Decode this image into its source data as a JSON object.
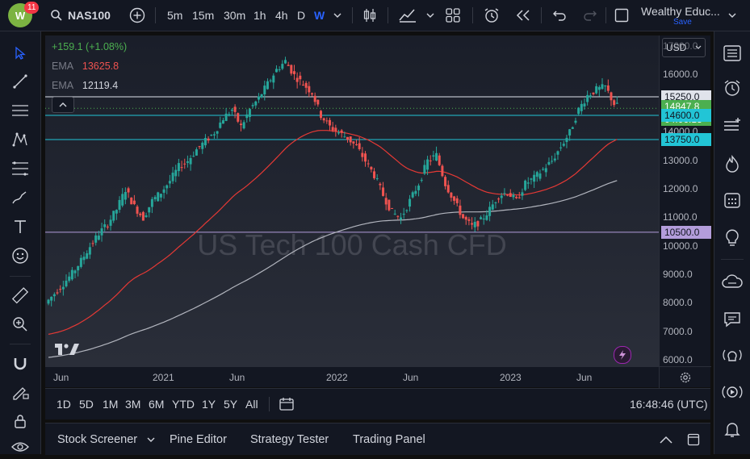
{
  "app": {
    "badge_count": "11",
    "symbol": "NAS100",
    "account_name": "Wealthy Educ...",
    "save_label": "Save"
  },
  "toolbar": {
    "intervals": [
      "5m",
      "15m",
      "30m",
      "1h",
      "4h",
      "D",
      "W"
    ],
    "active_interval": "W"
  },
  "legend": {
    "change": "+159.1 (+1.08%)",
    "ema1_label": "EMA",
    "ema1_value": "13625.8",
    "ema2_label": "EMA",
    "ema2_value": "12119.4"
  },
  "currency": "USD",
  "watermark": "US Tech 100 Cash CFD",
  "price_axis": {
    "ticks": [
      "17000.0",
      "16000.0",
      "15000.0",
      "14000.0",
      "13000.0",
      "12000.0",
      "11000.0",
      "10000.0",
      "9000.0",
      "8000.0",
      "7000.0",
      "6000.0"
    ],
    "levels": [
      {
        "label": "15250.0",
        "bg": "#e0e3eb",
        "fg": "#131722"
      },
      {
        "label": "14847.8",
        "bg": "#4caf50",
        "fg": "#ffffff"
      },
      {
        "label": "04:06:13",
        "bg": "#4caf50",
        "fg": "#ffffff"
      },
      {
        "label": "14600.0",
        "bg": "#22c5d6",
        "fg": "#131722"
      },
      {
        "label": "13750.0",
        "bg": "#22c5d6",
        "fg": "#131722"
      },
      {
        "label": "10500.0",
        "bg": "#b39ddb",
        "fg": "#131722"
      }
    ]
  },
  "time_axis": {
    "labels": [
      "Jun",
      "2021",
      "Jun",
      "2022",
      "Jun",
      "2023",
      "Jun"
    ]
  },
  "ranges": [
    "1D",
    "5D",
    "1M",
    "3M",
    "6M",
    "YTD",
    "1Y",
    "5Y",
    "All"
  ],
  "clock": "16:48:46 (UTC)",
  "panels": {
    "stock_screener": "Stock Screener",
    "pine_editor": "Pine Editor",
    "strategy_tester": "Strategy Tester",
    "trading_panel": "Trading Panel"
  },
  "colors": {
    "up": "#26a69a",
    "down": "#ef5350",
    "ema_fast": "#e53935",
    "ema_slow": "#b2b5be",
    "res_line": "#e0e3eb",
    "cyan_line": "#22c5d6",
    "purple_line": "#b39ddb"
  },
  "chart_data": {
    "type": "candlestick",
    "timeframe": "W",
    "y_range": [
      5800,
      17400
    ],
    "horizontal_levels": [
      15250,
      14847.8,
      14600,
      13750,
      10500
    ],
    "ema_fast_last": 13625.8,
    "ema_slow_last": 12119.4,
    "closes": [
      8350,
      8700,
      9050,
      9500,
      10000,
      10450,
      10800,
      11300,
      12000,
      11400,
      11000,
      11600,
      11900,
      12300,
      12800,
      13000,
      13400,
      13700,
      14000,
      14500,
      14800,
      14200,
      14800,
      15200,
      15700,
      16200,
      16500,
      16000,
      15700,
      15400,
      14600,
      14200,
      14000,
      13800,
      13500,
      13000,
      12500,
      11800,
      11200,
      11000,
      11600,
      12200,
      13000,
      13200,
      12200,
      11600,
      11000,
      10700,
      10900,
      11300,
      11800,
      11900,
      11600,
      12200,
      12400,
      12700,
      13000,
      13500,
      14000,
      14800,
      15300,
      15500,
      15600,
      15000,
      14800
    ]
  }
}
